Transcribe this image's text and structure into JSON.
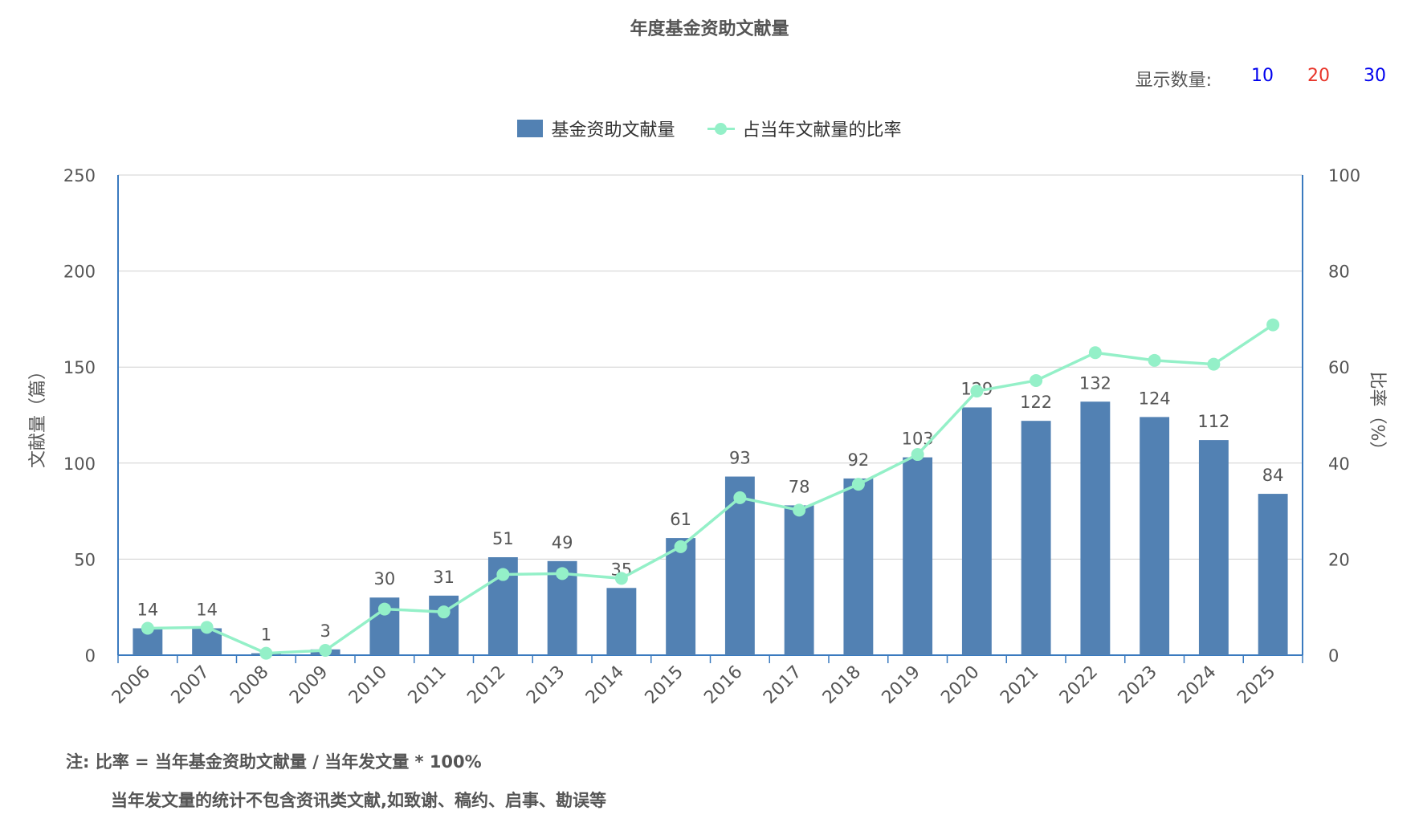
{
  "title": "年度基金资助文献量",
  "count_selector": {
    "label": "显示数量:",
    "options": [
      {
        "label": "10",
        "color": "#0000ee"
      },
      {
        "label": "20",
        "color": "#e8352a"
      },
      {
        "label": "30",
        "color": "#0000ee"
      }
    ]
  },
  "legend": {
    "bar_label": "基金资助文献量",
    "line_label": "占当年文献量的比率"
  },
  "colors": {
    "bar": "#5281b3",
    "line": "#94f0c8",
    "axis": "#3a7abf",
    "grid": "#d0d0d0"
  },
  "notes": {
    "line1": "注: 比率 = 当年基金资助文献量 / 当年发文量 * 100%",
    "line2": "当年发文量的统计不包含资讯类文献,如致谢、稿约、启事、勘误等"
  },
  "chart_data": {
    "type": "bar",
    "categories": [
      "2006",
      "2007",
      "2008",
      "2009",
      "2010",
      "2011",
      "2012",
      "2013",
      "2014",
      "2015",
      "2016",
      "2017",
      "2018",
      "2019",
      "2020",
      "2021",
      "2022",
      "2023",
      "2024",
      "2025"
    ],
    "series": [
      {
        "name": "基金资助文献量",
        "type": "bar",
        "axis": "left",
        "values": [
          14,
          14,
          1,
          3,
          30,
          31,
          51,
          49,
          35,
          61,
          93,
          78,
          92,
          103,
          129,
          122,
          132,
          124,
          112,
          84
        ]
      },
      {
        "name": "占当年文献量的比率",
        "type": "line",
        "axis": "right",
        "values": [
          5.6,
          5.8,
          0.4,
          1.0,
          9.6,
          9.0,
          16.8,
          17.0,
          16.0,
          22.6,
          32.8,
          30.2,
          35.6,
          41.8,
          55.0,
          57.2,
          63.0,
          61.4,
          60.6,
          68.8
        ]
      }
    ],
    "ylabel": "文献量（篇）",
    "y2label": "比率（%）",
    "ylim": [
      0,
      250
    ],
    "y2lim": [
      0,
      100
    ],
    "yticks": [
      0,
      50,
      100,
      150,
      200,
      250
    ],
    "y2ticks": [
      0,
      20,
      40,
      60,
      80,
      100
    ],
    "grid": true,
    "legend_position": "top-center"
  }
}
